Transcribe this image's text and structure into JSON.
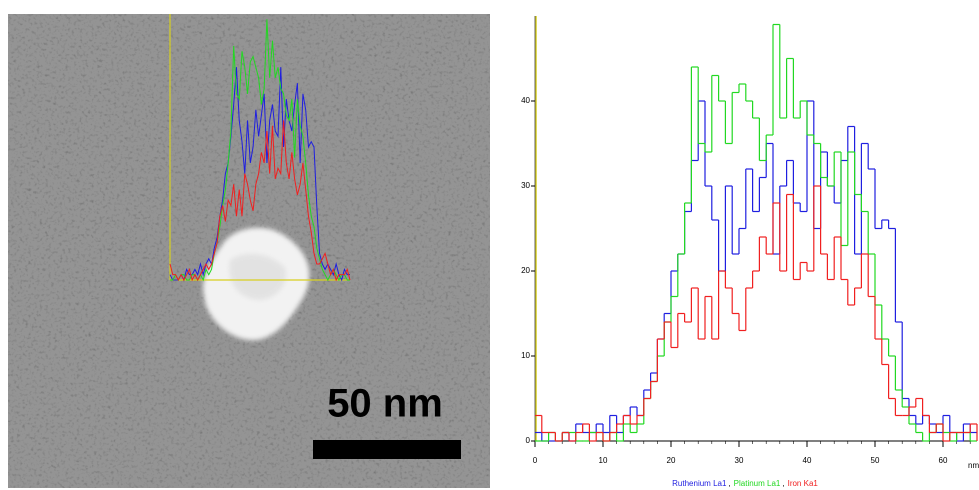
{
  "chart_data": {
    "type": "step",
    "x": [
      0,
      1,
      2,
      3,
      4,
      5,
      6,
      7,
      8,
      9,
      10,
      11,
      12,
      13,
      14,
      15,
      16,
      17,
      18,
      19,
      20,
      21,
      22,
      23,
      24,
      25,
      26,
      27,
      28,
      29,
      30,
      31,
      32,
      33,
      34,
      35,
      36,
      37,
      38,
      39,
      40,
      41,
      42,
      43,
      44,
      45,
      46,
      47,
      48,
      49,
      50,
      51,
      52,
      53,
      54,
      55,
      56,
      57,
      58,
      59,
      60,
      61,
      62,
      63,
      64,
      65
    ],
    "series": [
      {
        "name": "Ruthenium La1",
        "color": "#1f1fe0",
        "values": [
          1,
          0,
          0,
          0,
          1,
          0,
          2,
          1,
          1,
          2,
          1,
          3,
          1,
          3,
          4,
          3,
          6,
          8,
          12,
          15,
          20,
          22,
          27,
          33,
          40,
          30,
          26,
          20,
          30,
          22,
          25,
          32,
          27,
          31,
          35,
          22,
          30,
          33,
          28,
          27,
          40,
          25,
          34,
          30,
          28,
          33,
          37,
          22,
          35,
          32,
          25,
          26,
          25,
          14,
          5,
          3,
          2,
          3,
          2,
          1,
          3,
          1,
          0,
          2,
          1,
          1
        ]
      },
      {
        "name": "Platinum La1",
        "color": "#22d822",
        "values": [
          0,
          0,
          1,
          0,
          1,
          1,
          0,
          0,
          1,
          1,
          0,
          1,
          0,
          2,
          1,
          2,
          5,
          7,
          10,
          14,
          17,
          22,
          28,
          44,
          35,
          34,
          43,
          40,
          35,
          41,
          42,
          40,
          38,
          33,
          36,
          49,
          38,
          45,
          38,
          40,
          36,
          35,
          31,
          30,
          34,
          23,
          34,
          29,
          27,
          22,
          16,
          12,
          10,
          6,
          4,
          2,
          1,
          0,
          1,
          2,
          1,
          0,
          1,
          1,
          0,
          0
        ]
      },
      {
        "name": "Iron Ka1",
        "color": "#f02020",
        "values": [
          3,
          1,
          1,
          0,
          1,
          0,
          1,
          2,
          0,
          1,
          0,
          1,
          2,
          3,
          2,
          3,
          5,
          7,
          12,
          14,
          11,
          15,
          14,
          18,
          12,
          17,
          12,
          20,
          18,
          15,
          13,
          18,
          20,
          24,
          22,
          28,
          20,
          29,
          19,
          21,
          20,
          30,
          22,
          19,
          24,
          19,
          16,
          18,
          22,
          17,
          12,
          9,
          5,
          3,
          3,
          4,
          5,
          3,
          1,
          2,
          0,
          1,
          1,
          1,
          2,
          0
        ]
      }
    ],
    "legend_separator": ",",
    "xlabel": "nm",
    "xlim": [
      0,
      65
    ],
    "xticks": [
      0,
      10,
      20,
      30,
      40,
      50,
      60
    ],
    "ylim": [
      0,
      50
    ],
    "yticks": [
      0,
      10,
      20,
      30,
      40
    ],
    "annotations": [
      "50 nm"
    ]
  }
}
